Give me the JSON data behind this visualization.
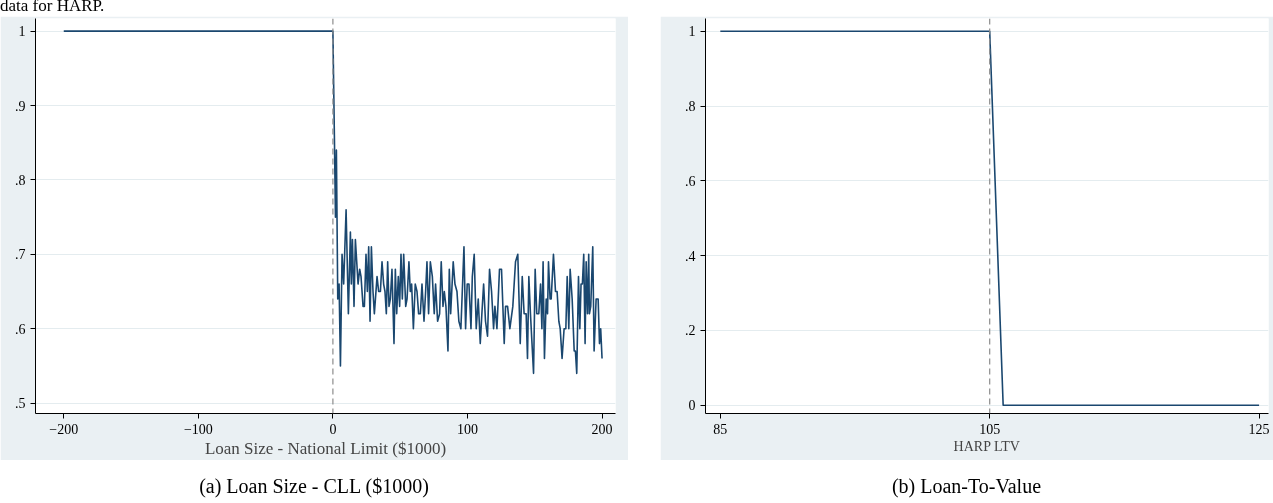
{
  "chart_data": [
    {
      "type": "line",
      "subtitle": "(a) Loan Size - CLL ($1000)",
      "xlabel": "Loan Size - National Limit ($1000)",
      "annotations": [
        "data for HARP."
      ],
      "x": [
        -200,
        -100,
        0,
        1.1,
        1.9,
        2.6,
        3.6,
        4.6,
        5.6,
        6.8,
        8.0,
        9.8,
        11.5,
        13.0,
        13.7,
        14.5,
        15.7,
        16.7,
        18.7,
        19.9,
        20.9,
        22.4,
        23.4,
        24.6,
        25.6,
        26.6,
        27.6,
        28.6,
        29.8,
        30.8,
        32.8,
        34.0,
        35.3,
        36.5,
        37.7,
        38.7,
        39.7,
        40.7,
        41.7,
        42.7,
        43.9,
        45.4,
        46.4,
        47.4,
        48.6,
        49.6,
        50.6,
        51.6,
        52.6,
        54.1,
        55.1,
        56.5,
        57.5,
        58.5,
        59.8,
        61.2,
        62.5,
        63.7,
        65.0,
        66.2,
        67.7,
        68.9,
        69.9,
        71.1,
        72.4,
        73.9,
        75.3,
        76.3,
        77.8,
        79.3,
        80.5,
        81.8,
        82.8,
        84.0,
        85.5,
        86.5,
        87.5,
        89.4,
        90.7,
        92.2,
        93.6,
        95.1,
        97.4,
        98.6,
        99.8,
        101.1,
        102.6,
        103.6,
        105.0,
        106.5,
        108.0,
        109.5,
        110.7,
        112.0,
        113.4,
        114.9,
        116.4,
        117.9,
        119.4,
        120.4,
        121.9,
        123.8,
        125.3,
        127.3,
        128.3,
        129.8,
        131.5,
        133.7,
        135.7,
        137.4,
        139.2,
        140.7,
        142.1,
        143.6,
        144.6,
        145.6,
        146.8,
        149.1,
        150.3,
        151.5,
        153.0,
        154.3,
        155.3,
        156.2,
        157.2,
        158.5,
        159.5,
        160.2,
        161.4,
        162.2,
        163.9,
        165.4,
        166.6,
        167.9,
        168.9,
        170.3,
        171.8,
        173.1,
        174.1,
        175.3,
        176.3,
        177.8,
        179.3,
        180.2,
        181.2,
        182.5,
        183.5,
        184.4,
        185.4,
        186.4,
        187.4,
        188.2,
        189.2,
        190.1,
        190.6,
        191.6,
        193.1,
        194.1,
        195.6,
        197.1,
        198.1,
        199.0,
        200
      ],
      "series": [
        {
          "color": "#1a476f",
          "values": [
            1,
            1,
            1,
            0.86,
            0.75,
            0.84,
            0.64,
            0.66,
            0.55,
            0.7,
            0.66,
            0.76,
            0.62,
            0.73,
            0.66,
            0.72,
            0.63,
            0.72,
            0.66,
            0.68,
            0.67,
            0.63,
            0.63,
            0.7,
            0.65,
            0.71,
            0.61,
            0.71,
            0.65,
            0.62,
            0.67,
            0.65,
            0.65,
            0.69,
            0.66,
            0.65,
            0.62,
            0.69,
            0.63,
            0.64,
            0.68,
            0.58,
            0.68,
            0.62,
            0.67,
            0.63,
            0.7,
            0.64,
            0.7,
            0.63,
            0.64,
            0.69,
            0.65,
            0.66,
            0.6,
            0.66,
            0.65,
            0.62,
            0.62,
            0.66,
            0.61,
            0.65,
            0.69,
            0.62,
            0.69,
            0.67,
            0.62,
            0.66,
            0.61,
            0.62,
            0.69,
            0.63,
            0.65,
            0.63,
            0.57,
            0.68,
            0.62,
            0.69,
            0.66,
            0.65,
            0.61,
            0.6,
            0.71,
            0.6,
            0.66,
            0.66,
            0.6,
            0.67,
            0.7,
            0.6,
            0.64,
            0.58,
            0.62,
            0.66,
            0.61,
            0.59,
            0.68,
            0.65,
            0.6,
            0.63,
            0.6,
            0.68,
            0.68,
            0.58,
            0.63,
            0.63,
            0.6,
            0.63,
            0.69,
            0.7,
            0.58,
            0.67,
            0.62,
            0.62,
            0.56,
            0.67,
            0.62,
            0.54,
            0.68,
            0.62,
            0.62,
            0.66,
            0.6,
            0.69,
            0.56,
            0.64,
            0.62,
            0.69,
            0.64,
            0.64,
            0.7,
            0.65,
            0.65,
            0.61,
            0.6,
            0.56,
            0.6,
            0.6,
            0.67,
            0.6,
            0.68,
            0.64,
            0.57,
            0.57,
            0.54,
            0.67,
            0.6,
            0.66,
            0.66,
            0.7,
            0.58,
            0.69,
            0.62,
            0.7,
            0.62,
            0.63,
            0.71,
            0.57,
            0.64,
            0.64,
            0.58,
            0.6,
            0.56
          ]
        }
      ],
      "xlim": [
        -221,
        210
      ],
      "ylim": [
        0.486,
        1.017
      ],
      "xticks": [
        -200,
        -100,
        0,
        100,
        200
      ],
      "yticks": [
        {
          "value": 0.5,
          "label": ".5"
        },
        {
          "value": 0.6,
          "label": ".6"
        },
        {
          "value": 0.7,
          "label": ".7"
        },
        {
          "value": 0.8,
          "label": ".8"
        },
        {
          "value": 0.9,
          "label": ".9"
        },
        {
          "value": 1,
          "label": "1"
        }
      ],
      "grid": "y",
      "line_style": "solid",
      "ref_lines": [
        {
          "axis": "x",
          "value": 0,
          "color": "#8c8c8c",
          "line_style": "dashed"
        }
      ]
    },
    {
      "type": "line",
      "subtitle": "(b) Loan-To-Value",
      "xlabel": "HARP LTV",
      "x": [
        85,
        105,
        106,
        125
      ],
      "series": [
        {
          "color": "#1a476f",
          "values": [
            1,
            1,
            0,
            0
          ]
        }
      ],
      "xlim": [
        83.9,
        125.7
      ],
      "ylim": [
        -0.022,
        1.034
      ],
      "xticks": [
        85,
        105,
        125
      ],
      "yticks": [
        {
          "value": 0,
          "label": "0"
        },
        {
          "value": 0.2,
          "label": ".2"
        },
        {
          "value": 0.4,
          "label": ".4"
        },
        {
          "value": 0.6,
          "label": ".6"
        },
        {
          "value": 0.8,
          "label": ".8"
        },
        {
          "value": 1,
          "label": "1"
        }
      ],
      "grid": "y",
      "line_style": "solid",
      "ref_lines": [
        {
          "axis": "x",
          "value": 105,
          "color": "#8c8c8c",
          "line_style": "dashed"
        }
      ]
    }
  ]
}
